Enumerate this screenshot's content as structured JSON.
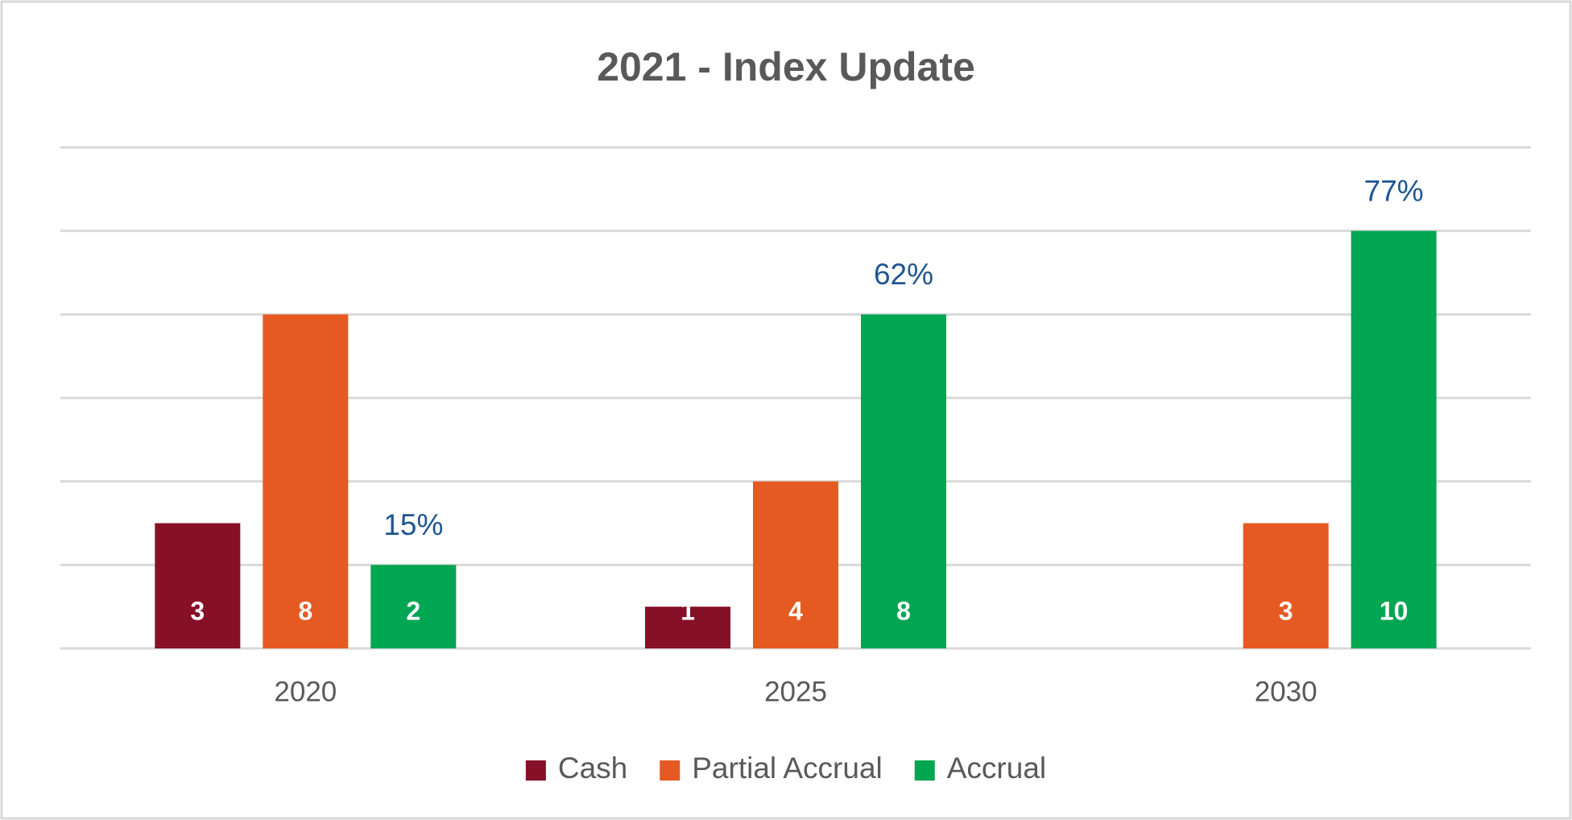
{
  "chart_data": {
    "type": "bar",
    "title": "2021 - Index Update",
    "categories": [
      "2020",
      "2025",
      "2030"
    ],
    "series": [
      {
        "name": "Cash",
        "color": "#861027",
        "values": [
          3,
          1,
          null
        ]
      },
      {
        "name": "Partial Accrual",
        "color": "#e55a22",
        "values": [
          8,
          4,
          3
        ]
      },
      {
        "name": "Accrual",
        "color": "#00a651",
        "values": [
          2,
          8,
          10
        ],
        "share_labels": [
          "15%",
          "62%",
          "77%"
        ]
      }
    ],
    "ylim": [
      0,
      12
    ],
    "yticks": [
      0,
      2,
      4,
      6,
      8,
      10,
      12
    ],
    "grid": true,
    "legend": "bottom"
  }
}
